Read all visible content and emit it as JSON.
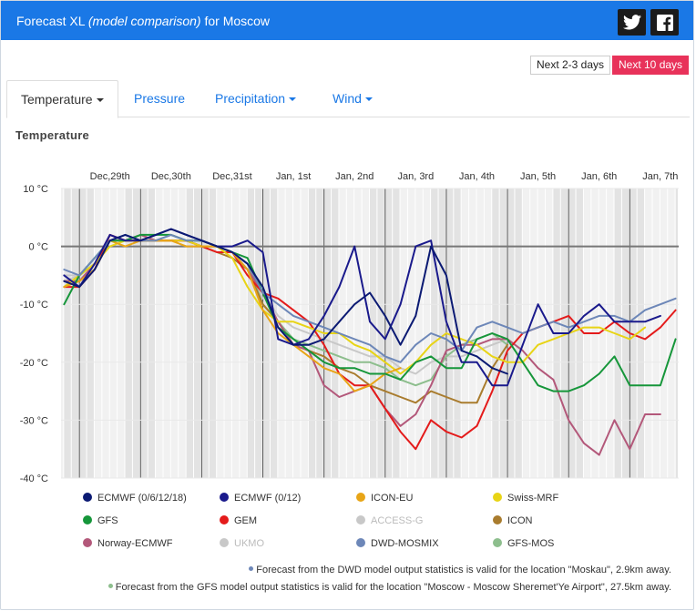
{
  "header": {
    "title_prefix": "Forecast XL",
    "title_model": "(model comparison)",
    "title_suffix": "for Moscow",
    "color": "#1a78e6"
  },
  "range_buttons": [
    "Next 2-3 days",
    "Next 10 days"
  ],
  "tabs": [
    {
      "label": "Temperature",
      "active": true
    },
    {
      "label": "Pressure"
    },
    {
      "label": "Precipitation"
    },
    {
      "label": "Wind"
    }
  ],
  "section_title": "Temperature",
  "chart_data": {
    "type": "line",
    "x_unit": "days after Dec 29 00:00",
    "xlim": [
      -0.3,
      9.8
    ],
    "ylim": [
      -40,
      10
    ],
    "y_ticks": [
      10,
      0,
      -10,
      -20,
      -30,
      -40
    ],
    "y_tick_labels": [
      "10 °C",
      "0 °C",
      "-10 °C",
      "-20 °C",
      "-30 °C",
      "-40 °C"
    ],
    "day_labels": [
      {
        "x": 0.5,
        "label": "Dec,29th"
      },
      {
        "x": 1.5,
        "label": "Dec,30th"
      },
      {
        "x": 2.5,
        "label": "Dec,31st"
      },
      {
        "x": 3.5,
        "label": "Jan, 1st"
      },
      {
        "x": 4.5,
        "label": "Jan, 2nd"
      },
      {
        "x": 5.5,
        "label": "Jan, 3rd"
      },
      {
        "x": 6.5,
        "label": "Jan, 4th"
      },
      {
        "x": 7.5,
        "label": "Jan, 5th"
      },
      {
        "x": 8.5,
        "label": "Jan, 6th"
      },
      {
        "x": 9.5,
        "label": "Jan, 7th"
      }
    ],
    "zero_line": true,
    "series": [
      {
        "name": "ECMWF (0/6/12/18)",
        "color": "#0b1a73",
        "x": [
          -0.25,
          0,
          0.25,
          0.5,
          0.75,
          1,
          1.25,
          1.5,
          1.75,
          2,
          2.25,
          2.5,
          2.75,
          3,
          3.25,
          3.5,
          3.75,
          4,
          4.25,
          4.5,
          4.75,
          5,
          5.25,
          5.5,
          5.75,
          6,
          6.25,
          6.5,
          6.75,
          7
        ],
        "y": [
          -6,
          -7,
          -4,
          1,
          2,
          1,
          2,
          3,
          2,
          1,
          0,
          -1,
          -3,
          -7,
          -14,
          -17,
          -17,
          -16,
          -13,
          -10,
          -8,
          -12,
          -17,
          -12,
          0,
          -5,
          -18,
          -19,
          -21,
          -22
        ]
      },
      {
        "name": "ECMWF (0/12)",
        "color": "#1a1a8c",
        "x": [
          -0.25,
          0,
          0.25,
          0.5,
          0.75,
          1,
          1.25,
          1.5,
          1.75,
          2,
          2.25,
          2.5,
          2.75,
          3,
          3.25,
          3.5,
          3.75,
          4,
          4.25,
          4.5,
          4.75,
          5,
          5.25,
          5.5,
          5.75,
          6,
          6.25,
          6.5,
          6.75,
          7,
          7.25,
          7.5,
          7.75,
          8,
          8.25,
          8.5,
          8.75,
          9,
          9.25,
          9.5
        ],
        "y": [
          -5,
          -7,
          -3,
          2,
          1,
          1,
          2,
          3,
          2,
          1,
          0,
          0,
          1,
          -1,
          -16,
          -17,
          -16,
          -12,
          -7,
          0,
          -13,
          -16,
          -10,
          0,
          1,
          -13,
          -20,
          -20,
          -24,
          -24,
          -17,
          -10,
          -15,
          -15,
          -12,
          -10,
          -13,
          -13,
          -13,
          -12
        ]
      },
      {
        "name": "ICON-EU",
        "color": "#e8a517",
        "x": [
          -0.25,
          0,
          0.25,
          0.5,
          0.75,
          1,
          1.25,
          1.5,
          1.75,
          2,
          2.25,
          2.5,
          2.75,
          3,
          3.25,
          3.5,
          3.75,
          4,
          4.25,
          4.5,
          4.75,
          5,
          5.25
        ],
        "y": [
          -7,
          -6,
          -4,
          1,
          0,
          1,
          1,
          1,
          0,
          0,
          0,
          -1,
          -4,
          -11,
          -15,
          -17,
          -19,
          -21,
          -22,
          -25,
          -24,
          -22,
          -21
        ]
      },
      {
        "name": "Swiss-MRF",
        "color": "#e8d416",
        "x": [
          -0.25,
          0,
          0.25,
          0.5,
          0.75,
          1,
          1.25,
          1.5,
          1.75,
          2,
          2.25,
          2.5,
          2.75,
          3,
          3.25,
          3.5,
          3.75,
          4,
          4.25,
          4.5,
          4.75,
          5,
          5.25,
          5.5,
          5.75,
          6,
          6.25,
          6.5,
          6.75,
          7,
          7.25,
          7.5,
          7.75,
          8,
          8.25,
          8.5,
          8.75,
          9,
          9.25
        ],
        "y": [
          -7,
          -5,
          -3,
          0,
          1,
          1,
          1,
          1,
          1,
          0,
          0,
          -2,
          -7,
          -11,
          -13,
          -13,
          -14,
          -15,
          -15,
          -17,
          -18,
          -20,
          -22,
          -20,
          -17,
          -15,
          -16,
          -17,
          -19,
          -20,
          -20,
          -17,
          -16,
          -15,
          -14,
          -14,
          -15,
          -16,
          -14
        ]
      },
      {
        "name": "GFS",
        "color": "#16963a",
        "x": [
          -0.25,
          0,
          0.25,
          0.5,
          0.75,
          1,
          1.25,
          1.5,
          1.75,
          2,
          2.25,
          2.5,
          2.75,
          3,
          3.25,
          3.5,
          3.75,
          4,
          4.25,
          4.5,
          4.75,
          5,
          5.25,
          5.5,
          5.75,
          6,
          6.25,
          6.5,
          6.75,
          7,
          7.25,
          7.5,
          7.75,
          8,
          8.25,
          8.5,
          8.75,
          9,
          9.25,
          9.5,
          9.75
        ],
        "y": [
          -10,
          -5,
          -2,
          1,
          1,
          2,
          2,
          2,
          1,
          1,
          0,
          -1,
          -2,
          -8,
          -14,
          -16,
          -18,
          -20,
          -21,
          -21,
          -22,
          -22,
          -23,
          -20,
          -19,
          -21,
          -21,
          -16,
          -15,
          -16,
          -20,
          -24,
          -25,
          -25,
          -24,
          -22,
          -19,
          -24,
          -24,
          -24,
          -16
        ]
      },
      {
        "name": "GEM",
        "color": "#e41b1b",
        "x": [
          -0.25,
          0,
          0.25,
          0.5,
          0.75,
          1,
          1.25,
          1.5,
          1.75,
          2,
          2.25,
          2.5,
          2.75,
          3,
          3.25,
          3.5,
          3.75,
          4,
          4.25,
          4.5,
          4.75,
          5,
          5.25,
          5.5,
          5.75,
          6,
          6.25,
          6.5,
          6.75,
          7,
          7.25,
          7.5,
          7.75,
          8,
          8.25,
          8.5,
          8.75,
          9,
          9.25,
          9.5,
          9.75
        ],
        "y": [
          -7,
          -7,
          -4,
          2,
          1,
          1,
          1,
          1,
          1,
          0,
          -1,
          -1,
          -5,
          -8,
          -9,
          -11,
          -13,
          -17,
          -22,
          -24,
          -24,
          -28,
          -32,
          -35,
          -30,
          -32,
          -33,
          -31,
          -25,
          -18,
          -15,
          -14,
          -13,
          -12,
          -15,
          -15,
          -13,
          -15,
          -16,
          -14,
          -11
        ]
      },
      {
        "name": "ACCESS-G",
        "color": "#c8c8c8",
        "x": [
          -0.25,
          0,
          0.25,
          0.5,
          0.75,
          1,
          1.25,
          1.5,
          1.75,
          2,
          2.25,
          2.5,
          2.75,
          3,
          3.25,
          3.5,
          3.75,
          4,
          4.25,
          4.5,
          4.75,
          5,
          5.25,
          5.5,
          5.75,
          6,
          6.25,
          6.5,
          6.75,
          7
        ],
        "y": [
          -5,
          -5,
          -3,
          1,
          1,
          1,
          1,
          1,
          1,
          1,
          0,
          -1,
          -3,
          -8,
          -12,
          -14,
          -15,
          -16,
          -17,
          -18,
          -19,
          -19,
          -21,
          -22,
          -20,
          -19,
          -19,
          -18,
          -17,
          -16
        ]
      },
      {
        "name": "ICON",
        "color": "#a97c2e",
        "x": [
          -0.25,
          0,
          0.25,
          0.5,
          0.75,
          1,
          1.25,
          1.5,
          1.75,
          2,
          2.25,
          2.5,
          2.75,
          3,
          3.25,
          3.5,
          3.75,
          4,
          4.25,
          4.5,
          4.75,
          5,
          5.25,
          5.5,
          5.75,
          6,
          6.25,
          6.5,
          6.75,
          7
        ],
        "y": [
          -6,
          -6,
          -4,
          1,
          1,
          1,
          1,
          1,
          1,
          0,
          -1,
          -2,
          -4,
          -10,
          -13,
          -17,
          -18,
          -19,
          -21,
          -22,
          -24,
          -25,
          -26,
          -27,
          -25,
          -26,
          -27,
          -27,
          -21,
          -17
        ]
      },
      {
        "name": "Norway-ECMWF",
        "color": "#b3587a",
        "x": [
          -0.25,
          0,
          0.25,
          0.5,
          0.75,
          1,
          1.25,
          1.5,
          1.75,
          2,
          2.25,
          2.5,
          2.75,
          3,
          3.25,
          3.5,
          3.75,
          4,
          4.25,
          4.5,
          4.75,
          5,
          5.25,
          5.5,
          5.75,
          6,
          6.25,
          6.5,
          6.75,
          7,
          7.25,
          7.5,
          7.75,
          8,
          8.25,
          8.5,
          8.75,
          9,
          9.25,
          9.5
        ],
        "y": [
          -6,
          -6,
          -3,
          2,
          1,
          2,
          1,
          1,
          1,
          0,
          0,
          -1,
          -4,
          -8,
          -13,
          -17,
          -18,
          -24,
          -26,
          -25,
          -24,
          -28,
          -31,
          -29,
          -24,
          -18,
          -17,
          -17,
          -16,
          -16,
          -18,
          -21,
          -23,
          -30,
          -34,
          -36,
          -30,
          -35,
          -29,
          -29
        ]
      },
      {
        "name": "UKMO",
        "color": "#c8c8c8",
        "x": [
          -0.25,
          0,
          0.25,
          0.5,
          0.75,
          1,
          1.25,
          1.5,
          1.75,
          2,
          2.25,
          2.5,
          2.75,
          3
        ],
        "y": [
          -6,
          -5,
          -3,
          1,
          1,
          1,
          1,
          1,
          1,
          1,
          0,
          -1,
          -3,
          -9
        ]
      },
      {
        "name": "DWD-MOSMIX",
        "color": "#6d87b8",
        "x": [
          -0.25,
          0,
          0.25,
          0.5,
          0.75,
          1,
          1.25,
          1.5,
          1.75,
          2,
          2.25,
          2.5,
          2.75,
          3,
          3.25,
          3.5,
          3.75,
          4,
          4.25,
          4.5,
          4.75,
          5,
          5.25,
          5.5,
          5.75,
          6,
          6.25,
          6.5,
          6.75,
          7,
          7.25,
          7.5,
          7.75,
          8,
          8.25,
          8.5,
          8.75,
          9,
          9.25,
          9.5,
          9.75
        ],
        "y": [
          -4,
          -5,
          -2,
          1,
          2,
          1,
          1,
          2,
          1,
          1,
          0,
          -1,
          -3,
          -8,
          -10,
          -12,
          -13,
          -14,
          -15,
          -16,
          -17,
          -19,
          -20,
          -17,
          -15,
          -16,
          -18,
          -14,
          -13,
          -14,
          -15,
          -14,
          -13,
          -14,
          -13,
          -12,
          -12,
          -13,
          -11,
          -10,
          -9
        ]
      },
      {
        "name": "GFS-MOS",
        "color": "#8dbe8d",
        "x": [
          -0.25,
          0,
          0.25,
          0.5,
          0.75,
          1,
          1.25,
          1.5,
          1.75,
          2,
          2.25,
          2.5,
          2.75,
          3,
          3.25,
          3.5,
          3.75,
          4,
          4.25,
          4.5,
          4.75,
          5,
          5.25,
          5.5,
          5.75,
          6,
          6.25,
          6.5,
          6.75,
          7
        ],
        "y": [
          -7,
          -5,
          -3,
          1,
          1,
          1,
          1,
          2,
          1,
          1,
          0,
          -1,
          -3,
          -10,
          -13,
          -16,
          -17,
          -18,
          -19,
          -20,
          -20,
          -21,
          -23,
          -24,
          -23,
          -19,
          -17,
          -16,
          -15,
          -17
        ]
      }
    ]
  },
  "legend": [
    {
      "label": "ECMWF (0/6/12/18)",
      "color": "#0b1a73",
      "faded": false
    },
    {
      "label": "ECMWF (0/12)",
      "color": "#1a1a8c",
      "faded": false
    },
    {
      "label": "ICON-EU",
      "color": "#e8a517",
      "faded": false
    },
    {
      "label": "Swiss-MRF",
      "color": "#e8d416",
      "faded": false
    },
    {
      "label": "GFS",
      "color": "#16963a",
      "faded": false
    },
    {
      "label": "GEM",
      "color": "#e41b1b",
      "faded": false
    },
    {
      "label": "ACCESS-G",
      "color": "#c8c8c8",
      "faded": true
    },
    {
      "label": "ICON",
      "color": "#a97c2e",
      "faded": false
    },
    {
      "label": "Norway-ECMWF",
      "color": "#b3587a",
      "faded": false
    },
    {
      "label": "UKMO",
      "color": "#c8c8c8",
      "faded": true
    },
    {
      "label": "DWD-MOSMIX",
      "color": "#6d87b8",
      "faded": false
    },
    {
      "label": "GFS-MOS",
      "color": "#8dbe8d",
      "faded": false
    }
  ],
  "notes": [
    {
      "text": "Forecast from the DWD model output statistics is valid for the location \"Moskau\", 2.9km away.",
      "dot_color": "#6d87b8"
    },
    {
      "text": "Forecast from the GFS model output statistics is valid for the location \"Moscow - Moscow Sheremet'Ye Airport\", 27.5km away.",
      "dot_color": "#8dbe8d"
    }
  ]
}
